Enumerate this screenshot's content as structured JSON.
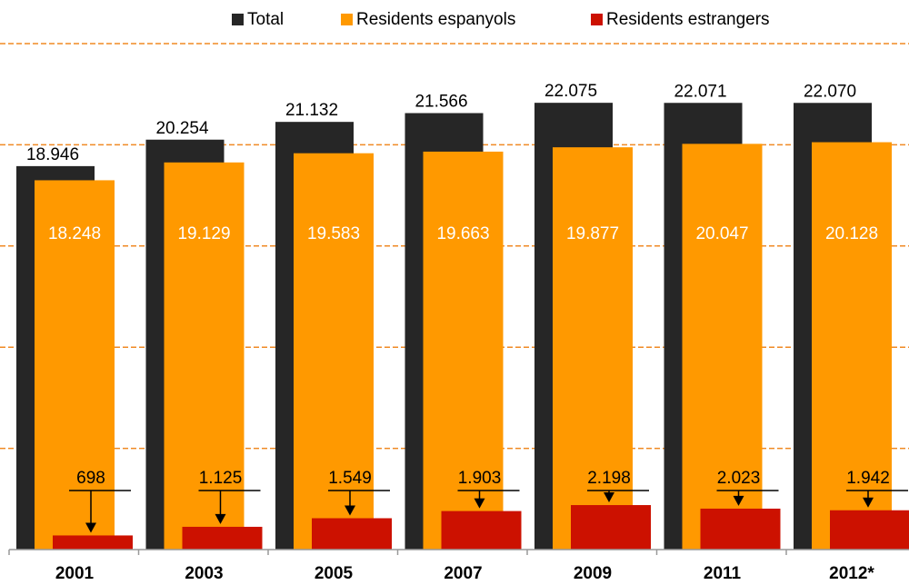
{
  "chart_data": {
    "type": "bar",
    "categories": [
      "2001",
      "2003",
      "2005",
      "2007",
      "2009",
      "2011",
      "2012*"
    ],
    "series": [
      {
        "name": "Total",
        "color": "#262626",
        "values": [
          18946,
          20254,
          21132,
          21566,
          22075,
          22071,
          22070
        ],
        "value_labels": [
          "18.946",
          "20.254",
          "21.132",
          "21.566",
          "22.075",
          "22.071",
          "22.070"
        ]
      },
      {
        "name": "Residents espanyols",
        "color": "#ff9900",
        "values": [
          18248,
          19129,
          19583,
          19663,
          19877,
          20047,
          20128
        ],
        "value_labels": [
          "18.248",
          "19.129",
          "19.583",
          "19.663",
          "19.877",
          "20.047",
          "20.128"
        ]
      },
      {
        "name": "Residents estrangers",
        "color": "#cc1100",
        "values": [
          698,
          1125,
          1549,
          1903,
          2198,
          2023,
          1942
        ],
        "value_labels": [
          "698",
          "1.125",
          "1.549",
          "1.903",
          "2.198",
          "2.023",
          "1.942"
        ]
      }
    ],
    "ylim": [
      0,
      25000
    ],
    "yticks": [
      0,
      5000,
      10000,
      15000,
      20000,
      25000
    ],
    "grid": true
  }
}
